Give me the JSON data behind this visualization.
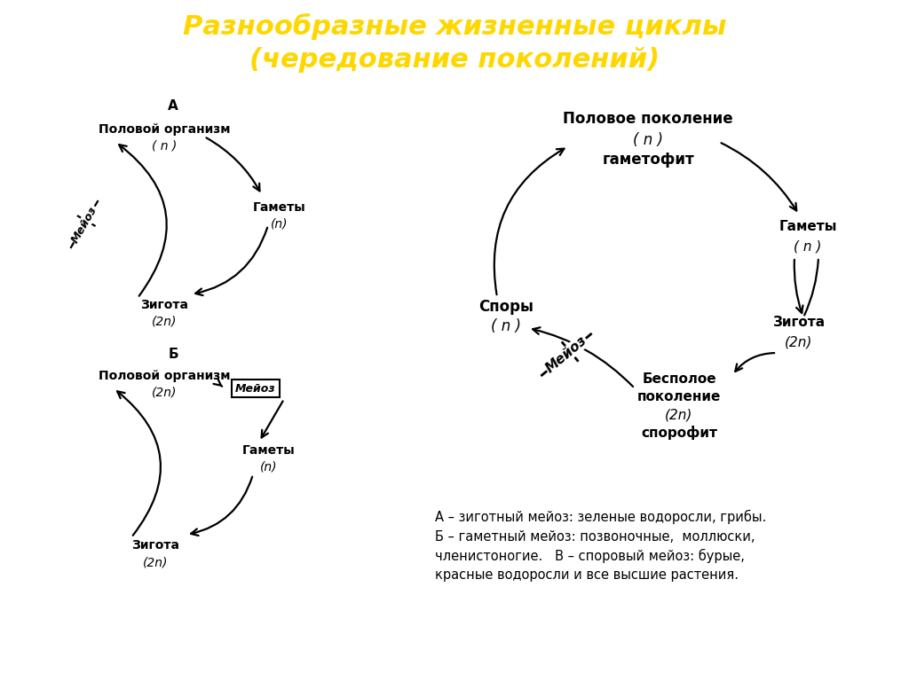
{
  "title_line1": "Разнообразные жизненные циклы",
  "title_line2": "(чередование поколений)",
  "title_color": "#FFD700",
  "title_fontsize": 22,
  "bg_color": "#FFFFFF",
  "text_color": "#000000",
  "caption": "А – зиготный мейоз: зеленые водоросли, грибы.\nБ – гаметный мейоз: позвоночные,  моллюски,\nчленистоногие.   В – споровый мейоз: бурые,\nкрасные водоросли и все высшие растения."
}
